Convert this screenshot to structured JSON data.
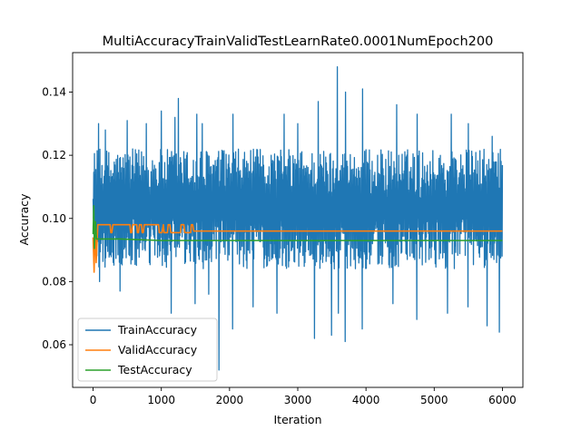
{
  "chart_data": {
    "type": "line",
    "title": "MultiAccuracyTrainValidTestLearnRate0.0001NumEpoch200",
    "xlabel": "Iteration",
    "ylabel": "Accuracy",
    "xlim": [
      -300,
      6300
    ],
    "ylim": [
      0.0465,
      0.1525
    ],
    "xticks": [
      0,
      1000,
      2000,
      3000,
      4000,
      5000,
      6000
    ],
    "xtick_labels": [
      "0",
      "1000",
      "2000",
      "3000",
      "4000",
      "5000",
      "6000"
    ],
    "yticks": [
      0.06,
      0.08,
      0.1,
      0.12,
      0.14
    ],
    "ytick_labels": [
      "0.06",
      "0.08",
      "0.10",
      "0.12",
      "0.14"
    ],
    "grid": false,
    "legend_position": "lower-left",
    "series": [
      {
        "name": "TrainAccuracy",
        "color": "#1f77b4",
        "style": "noisy",
        "x_range": [
          0,
          6000
        ],
        "typical_range": [
          0.084,
          0.122
        ],
        "peaks": [
          [
            85,
            0.13
          ],
          [
            180,
            0.128
          ],
          [
            500,
            0.131
          ],
          [
            780,
            0.13
          ],
          [
            1000,
            0.134
          ],
          [
            1200,
            0.132
          ],
          [
            1250,
            0.138
          ],
          [
            1520,
            0.133
          ],
          [
            1600,
            0.13
          ],
          [
            2050,
            0.133
          ],
          [
            2800,
            0.133
          ],
          [
            3000,
            0.13
          ],
          [
            3300,
            0.137
          ],
          [
            3580,
            0.148
          ],
          [
            3700,
            0.14
          ],
          [
            3950,
            0.141
          ],
          [
            4450,
            0.136
          ],
          [
            4750,
            0.133
          ],
          [
            5250,
            0.133
          ],
          [
            5500,
            0.13
          ],
          [
            5850,
            0.126
          ]
        ],
        "troughs": [
          [
            100,
            0.08
          ],
          [
            400,
            0.077
          ],
          [
            1150,
            0.07
          ],
          [
            1500,
            0.073
          ],
          [
            1700,
            0.076
          ],
          [
            1850,
            0.052
          ],
          [
            2050,
            0.065
          ],
          [
            2350,
            0.072
          ],
          [
            2700,
            0.07
          ],
          [
            3250,
            0.062
          ],
          [
            3500,
            0.063
          ],
          [
            3600,
            0.07
          ],
          [
            3700,
            0.061
          ],
          [
            3950,
            0.065
          ],
          [
            4400,
            0.073
          ],
          [
            4750,
            0.068
          ],
          [
            5200,
            0.07
          ],
          [
            5500,
            0.072
          ],
          [
            5780,
            0.066
          ],
          [
            5960,
            0.064
          ]
        ]
      },
      {
        "name": "ValidAccuracy",
        "color": "#ff7f0e",
        "x": [
          0,
          15,
          30,
          45,
          70,
          100,
          140,
          250,
          260,
          275,
          290,
          540,
          550,
          565,
          580,
          640,
          650,
          665,
          680,
          710,
          720,
          735,
          750,
          960,
          970,
          1010,
          1030,
          1040,
          1090,
          1100,
          1125,
          1140,
          1280,
          1290,
          1330,
          1345,
          1430,
          1440,
          1460,
          1475,
          1500,
          6000
        ],
        "y": [
          0.094,
          0.083,
          0.098,
          0.086,
          0.098,
          0.098,
          0.098,
          0.098,
          0.0955,
          0.0955,
          0.098,
          0.098,
          0.0955,
          0.0955,
          0.098,
          0.098,
          0.0955,
          0.0955,
          0.098,
          0.098,
          0.0955,
          0.0955,
          0.098,
          0.098,
          0.0955,
          0.0955,
          0.098,
          0.0955,
          0.0955,
          0.098,
          0.098,
          0.0955,
          0.0955,
          0.098,
          0.098,
          0.0955,
          0.0955,
          0.098,
          0.098,
          0.096,
          0.096,
          0.096
        ]
      },
      {
        "name": "TestAccuracy",
        "color": "#2ca02c",
        "x": [
          0,
          10,
          20,
          35,
          50,
          80,
          150,
          400,
          1000,
          6000
        ],
        "y": [
          0.095,
          0.104,
          0.0905,
          0.099,
          0.0935,
          0.0935,
          0.0935,
          0.0935,
          0.093,
          0.093
        ]
      }
    ]
  }
}
